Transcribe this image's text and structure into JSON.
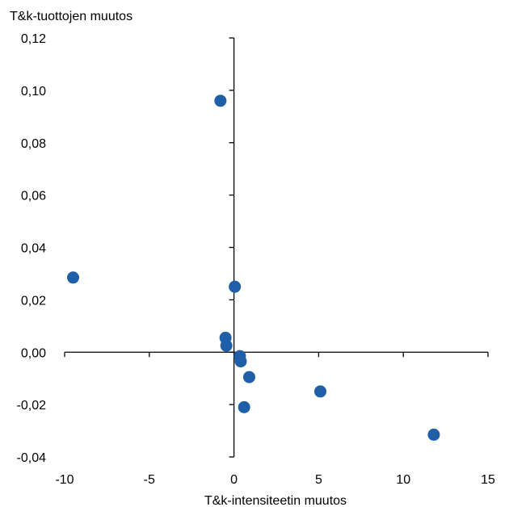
{
  "chart_data": {
    "type": "scatter",
    "title": "",
    "ylabel": "T&k-tuottojen muutos",
    "xlabel": "T&k-intensiteetin muutos",
    "xlim": [
      -10,
      15
    ],
    "ylim": [
      -0.04,
      0.12
    ],
    "x_ticks": [
      -10,
      -5,
      0,
      5,
      10,
      15
    ],
    "x_tick_labels": [
      "-10",
      "-5",
      "0",
      "5",
      "10",
      "15"
    ],
    "y_ticks": [
      -0.04,
      -0.02,
      0.0,
      0.02,
      0.04,
      0.06,
      0.08,
      0.1,
      0.12
    ],
    "y_tick_labels": [
      "-0,04",
      "-0,02",
      "0,00",
      "0,02",
      "0,04",
      "0,06",
      "0,08",
      "0,10",
      "0,12"
    ],
    "grid": false,
    "legend": "none",
    "marker_color": "#1f5fa8",
    "points": [
      {
        "x": -0.8,
        "y": 0.096
      },
      {
        "x": -9.5,
        "y": 0.0285
      },
      {
        "x": 0.05,
        "y": 0.025
      },
      {
        "x": -0.5,
        "y": 0.0055
      },
      {
        "x": -0.45,
        "y": 0.0025
      },
      {
        "x": 0.35,
        "y": -0.0015
      },
      {
        "x": 0.4,
        "y": -0.0035
      },
      {
        "x": 0.9,
        "y": -0.0095
      },
      {
        "x": 5.1,
        "y": -0.015
      },
      {
        "x": 0.6,
        "y": -0.021
      },
      {
        "x": 11.8,
        "y": -0.0315
      }
    ]
  }
}
